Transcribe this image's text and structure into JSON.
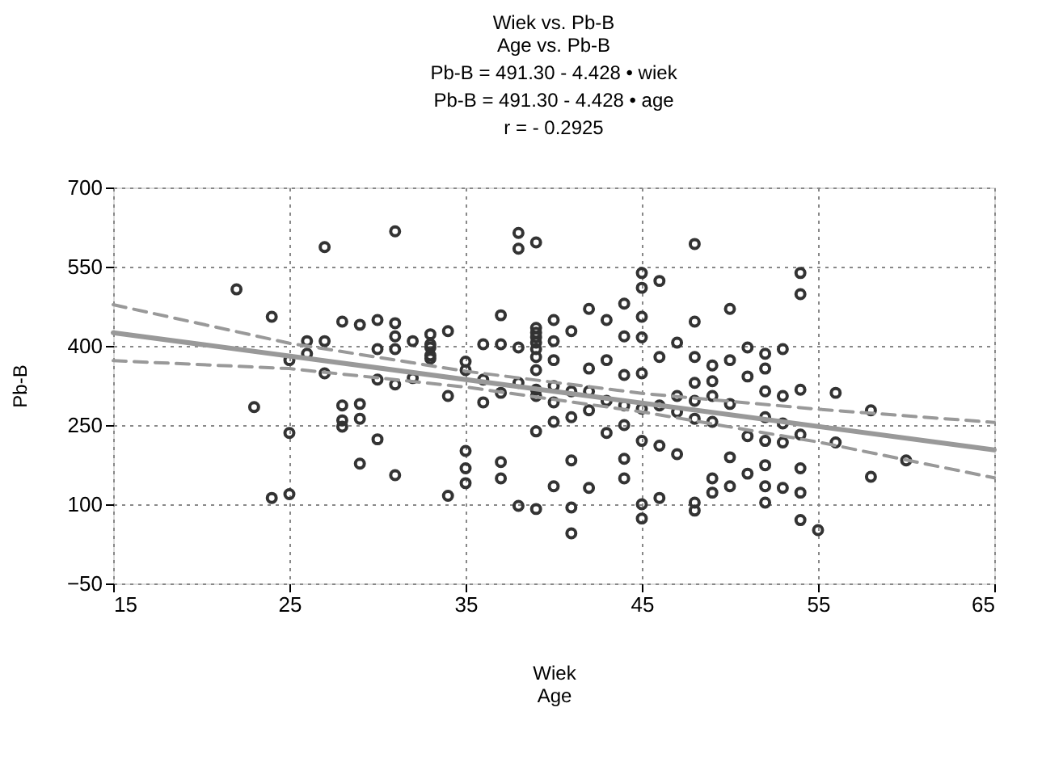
{
  "chart_data": {
    "type": "scatter",
    "title": "Wiek vs. Pb-B",
    "subtitle": "Age vs. Pb-B",
    "annotations": [
      "Pb-B = 491.30 - 4.428 • wiek",
      "Pb-B = 491.30 - 4.428 • age",
      "r = - 0.2925"
    ],
    "xlabel": "Wiek\nAge",
    "ylabel": "Pb-B",
    "xlim": [
      15,
      65
    ],
    "xticks": [
      15,
      25,
      35,
      45,
      55,
      65
    ],
    "ylim": [
      -50,
      700
    ],
    "yticks": [
      -50,
      100,
      250,
      400,
      550,
      700
    ],
    "grid": true,
    "series": [
      {
        "marker": "circle",
        "color": "#333333",
        "x": [
          22,
          23,
          24,
          24,
          25,
          25,
          25,
          26,
          26,
          27,
          27,
          27,
          28,
          28,
          28,
          28,
          29,
          29,
          29,
          29,
          30,
          30,
          30,
          30,
          31,
          31,
          31,
          31,
          31,
          31,
          32,
          32,
          33,
          33,
          33,
          33,
          33,
          34,
          34,
          34,
          35,
          35,
          35,
          35,
          35,
          36,
          36,
          36,
          37,
          37,
          37,
          37,
          37,
          38,
          38,
          38,
          38,
          38,
          39,
          39,
          39,
          39,
          39,
          39,
          39,
          39,
          39,
          39,
          39,
          39,
          40,
          40,
          40,
          40,
          40,
          40,
          40,
          41,
          41,
          41,
          41,
          41,
          41,
          42,
          42,
          42,
          42,
          42,
          43,
          43,
          43,
          43,
          44,
          44,
          44,
          44,
          44,
          44,
          44,
          45,
          45,
          45,
          45,
          45,
          45,
          45,
          45,
          45,
          46,
          46,
          46,
          46,
          46,
          47,
          47,
          47,
          47,
          48,
          48,
          48,
          48,
          48,
          48,
          48,
          48,
          49,
          49,
          49,
          49,
          49,
          49,
          50,
          50,
          50,
          50,
          50,
          51,
          51,
          51,
          51,
          52,
          52,
          52,
          52,
          52,
          52,
          52,
          52,
          53,
          53,
          53,
          53,
          53,
          54,
          54,
          54,
          54,
          54,
          54,
          54,
          55,
          56,
          56,
          58,
          58,
          60
        ],
        "values": [
          507,
          284,
          455,
          112,
          373,
          235,
          119,
          409,
          385,
          587,
          409,
          348,
          446,
          287,
          259,
          247,
          440,
          290,
          177,
          262,
          449,
          394,
          336,
          223,
          617,
          443,
          418,
          394,
          327,
          155,
          409,
          339,
          422,
          403,
          397,
          382,
          376,
          428,
          305,
          116,
          370,
          354,
          201,
          168,
          140,
          403,
          336,
          293,
          458,
          403,
          311,
          180,
          149,
          614,
          584,
          397,
          330,
          97,
          596,
          434,
          425,
          416,
          406,
          394,
          379,
          354,
          317,
          305,
          238,
          91,
          449,
          409,
          373,
          324,
          293,
          256,
          134,
          428,
          314,
          265,
          183,
          45,
          94,
          470,
          357,
          314,
          278,
          131,
          449,
          373,
          296,
          235,
          480,
          418,
          345,
          287,
          250,
          186,
          149,
          538,
          510,
          455,
          416,
          348,
          281,
          220,
          100,
          73,
          523,
          379,
          287,
          211,
          112,
          406,
          305,
          275,
          195,
          593,
          446,
          379,
          330,
          296,
          262,
          103,
          88,
          363,
          333,
          305,
          256,
          149,
          122,
          470,
          373,
          290,
          189,
          134,
          397,
          342,
          229,
          158,
          385,
          357,
          314,
          265,
          220,
          174,
          134,
          103,
          394,
          305,
          253,
          217,
          131,
          538,
          498,
          317,
          232,
          168,
          122,
          70,
          51,
          311,
          217,
          152,
          278,
          183
        ]
      },
      {
        "type": "line",
        "color": "#999999",
        "marker": "none",
        "line_style": "solid",
        "x": [
          15,
          65
        ],
        "values": [
          425,
          203
        ]
      },
      {
        "type": "line",
        "color": "#999999",
        "marker": "none",
        "line_style": "dashed",
        "x": [
          15,
          25,
          35,
          45,
          55,
          65
        ],
        "values": [
          478,
          405,
          352,
          310,
          280,
          255
        ]
      },
      {
        "type": "line",
        "color": "#999999",
        "marker": "none",
        "line_style": "dashed",
        "x": [
          15,
          25,
          35,
          45,
          55,
          65
        ],
        "values": [
          372,
          357,
          322,
          275,
          218,
          150
        ]
      }
    ]
  }
}
